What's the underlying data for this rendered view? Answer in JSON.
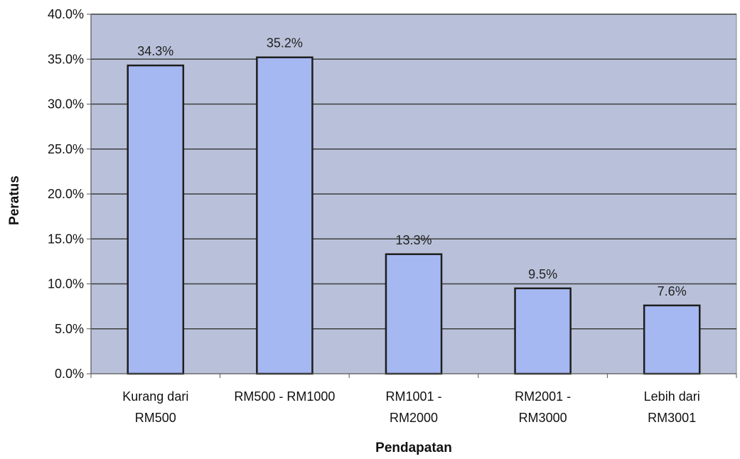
{
  "chart_data": {
    "type": "bar",
    "xlabel": "Pendapatan",
    "ylabel": "Peratus",
    "categories": [
      [
        "Kurang dari",
        "RM500"
      ],
      [
        "RM500 - RM1000"
      ],
      [
        "RM1001 -",
        "RM2000"
      ],
      [
        "RM2001 -",
        "RM3000"
      ],
      [
        "Lebih dari",
        "RM3001"
      ]
    ],
    "values": [
      34.3,
      35.2,
      13.3,
      9.5,
      7.6
    ],
    "data_labels": [
      "34.3%",
      "35.2%",
      "13.3%",
      "9.5%",
      "7.6%"
    ],
    "ylim": [
      0,
      40
    ],
    "yticks": [
      0,
      5,
      10,
      15,
      20,
      25,
      30,
      35,
      40
    ],
    "ytick_labels": [
      "0.0%",
      "5.0%",
      "10.0%",
      "15.0%",
      "20.0%",
      "25.0%",
      "30.0%",
      "35.0%",
      "40.0%"
    ],
    "grid": true,
    "legend": "none",
    "colors": {
      "plot_background": "#b9c1da",
      "bar_fill": "#a6b8f2",
      "bar_stroke": "#1e1e1e",
      "grid": "#3f3f3f"
    }
  }
}
